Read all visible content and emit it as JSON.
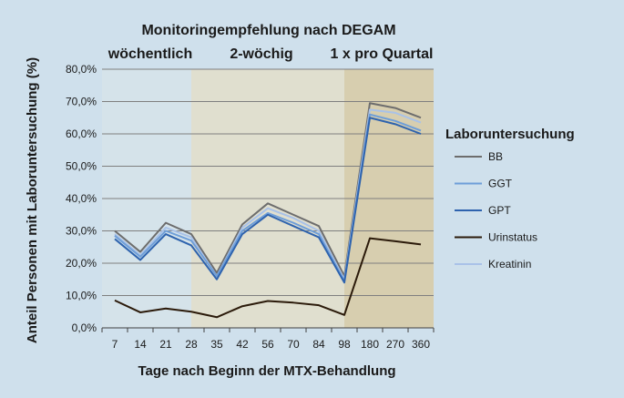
{
  "chart_data": {
    "type": "line",
    "title": "Monitoringempfehlung nach DEGAM",
    "phases": [
      {
        "label": "wöchentlich",
        "from": "7",
        "to": "28",
        "color": "#d5e3ea"
      },
      {
        "label": "2-wöchig",
        "from": "28",
        "to": "98",
        "color": "#e0dfcf"
      },
      {
        "label": "1 x pro Quartal",
        "from": "98",
        "to": "360",
        "color": "#d7ceaf"
      }
    ],
    "xlabel": "Tage nach Beginn der MTX-Behandlung",
    "ylabel": "Anteil Personen mit Laboruntersuchung (%)",
    "categories": [
      "7",
      "14",
      "21",
      "28",
      "35",
      "42",
      "56",
      "70",
      "84",
      "98",
      "180",
      "270",
      "360"
    ],
    "ylim": [
      0,
      80
    ],
    "yticks": [
      "0,0%",
      "10,0%",
      "20,0%",
      "30,0%",
      "40,0%",
      "50,0%",
      "60,0%",
      "70,0%",
      "80,0%"
    ],
    "grid": true,
    "legend_title": "Laboruntersuchung",
    "legend_position": "right",
    "series": [
      {
        "name": "BB",
        "color": "#6d6d6d",
        "values": [
          30.0,
          23.5,
          32.5,
          29.0,
          17.0,
          32.0,
          38.5,
          35.0,
          31.5,
          16.0,
          69.5,
          68.0,
          65.0
        ]
      },
      {
        "name": "GGT",
        "color": "#6e9ed8",
        "values": [
          28.5,
          22.0,
          30.0,
          27.0,
          16.0,
          30.0,
          35.5,
          32.5,
          29.0,
          14.5,
          66.0,
          64.0,
          61.0
        ]
      },
      {
        "name": "GPT",
        "color": "#2e63ae",
        "values": [
          27.5,
          21.0,
          29.0,
          25.5,
          15.0,
          29.0,
          35.0,
          31.5,
          28.0,
          14.0,
          65.0,
          63.0,
          60.0
        ]
      },
      {
        "name": "Urinstatus",
        "color": "#2b1a0a",
        "values": [
          8.5,
          4.8,
          6.0,
          5.0,
          3.3,
          6.7,
          8.3,
          7.8,
          7.0,
          4.0,
          27.7,
          26.8,
          25.8
        ]
      },
      {
        "name": "Kreatinin",
        "color": "#a9c2e8",
        "values": [
          29.0,
          22.5,
          31.0,
          28.0,
          16.0,
          31.0,
          37.0,
          34.0,
          30.0,
          15.0,
          67.5,
          66.5,
          63.5
        ]
      }
    ]
  }
}
